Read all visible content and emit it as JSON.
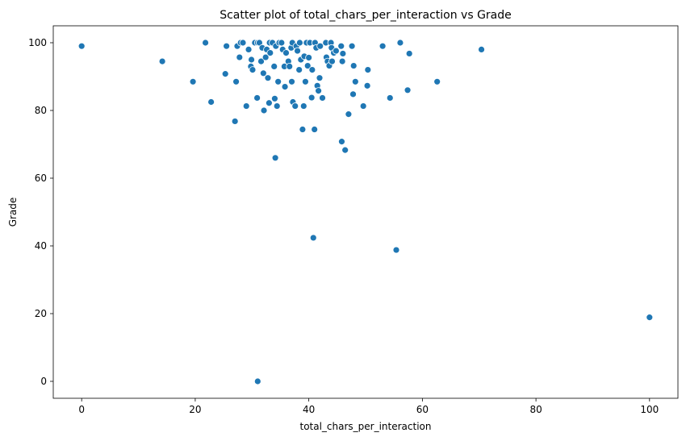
{
  "chart_data": {
    "type": "scatter",
    "title": "Scatter plot of total_chars_per_interaction vs Grade",
    "xlabel": "total_chars_per_interaction",
    "ylabel": "Grade",
    "xlim": [
      -5,
      105
    ],
    "ylim": [
      -5,
      105
    ],
    "xticks": [
      0,
      20,
      40,
      60,
      80,
      100
    ],
    "yticks": [
      0,
      20,
      40,
      60,
      80,
      100
    ],
    "grid": false,
    "legend": "none",
    "color": "#1f77b4",
    "points": [
      [
        0,
        99
      ],
      [
        14.2,
        94.5
      ],
      [
        19.6,
        88.5
      ],
      [
        21.8,
        100
      ],
      [
        22.8,
        82.5
      ],
      [
        25.3,
        90.8
      ],
      [
        25.5,
        99
      ],
      [
        27,
        76.8
      ],
      [
        27.2,
        88.5
      ],
      [
        27.4,
        99
      ],
      [
        27.8,
        95.7
      ],
      [
        28,
        100
      ],
      [
        28.4,
        100
      ],
      [
        29.0,
        81.3
      ],
      [
        29.4,
        98
      ],
      [
        29.8,
        93
      ],
      [
        29.9,
        95
      ],
      [
        30.1,
        92
      ],
      [
        30.5,
        100
      ],
      [
        30.9,
        83.7
      ],
      [
        31.0,
        100
      ],
      [
        31.3,
        100
      ],
      [
        31.6,
        94.5
      ],
      [
        31.8,
        98.5
      ],
      [
        32.0,
        91
      ],
      [
        32.1,
        80
      ],
      [
        32.4,
        95.7
      ],
      [
        32.6,
        98
      ],
      [
        32.8,
        89.6
      ],
      [
        33.1,
        100
      ],
      [
        33.2,
        97
      ],
      [
        33.6,
        100
      ],
      [
        33.0,
        82.2
      ],
      [
        33.9,
        93
      ],
      [
        34.0,
        83.5
      ],
      [
        34.1,
        66
      ],
      [
        34.2,
        99
      ],
      [
        34.4,
        81.3
      ],
      [
        34.6,
        88.5
      ],
      [
        34.8,
        100
      ],
      [
        35.2,
        100
      ],
      [
        35.4,
        98
      ],
      [
        35.7,
        93
      ],
      [
        35.8,
        87
      ],
      [
        36.0,
        97
      ],
      [
        36.4,
        94.5
      ],
      [
        36.6,
        93
      ],
      [
        36.9,
        98.5
      ],
      [
        37.0,
        88.5
      ],
      [
        37.1,
        100
      ],
      [
        37.2,
        82.5
      ],
      [
        37.6,
        81.3
      ],
      [
        37.8,
        99
      ],
      [
        38.0,
        97.6
      ],
      [
        38.3,
        92
      ],
      [
        38.4,
        100
      ],
      [
        38.6,
        95
      ],
      [
        38.9,
        74.4
      ],
      [
        39.1,
        81.3
      ],
      [
        39.2,
        96
      ],
      [
        39.4,
        88.5
      ],
      [
        39.6,
        100
      ],
      [
        39.8,
        93.2
      ],
      [
        40.0,
        95.6
      ],
      [
        40.2,
        100
      ],
      [
        40.5,
        83.8
      ],
      [
        40.6,
        92
      ],
      [
        40.8,
        42.4
      ],
      [
        41.0,
        74.4
      ],
      [
        41.1,
        100
      ],
      [
        41.3,
        98.5
      ],
      [
        41.5,
        87.3
      ],
      [
        41.7,
        85.8
      ],
      [
        41.9,
        89.6
      ],
      [
        42.0,
        99
      ],
      [
        42.4,
        83.7
      ],
      [
        43.0,
        100
      ],
      [
        43.1,
        95.7
      ],
      [
        43.3,
        94.5
      ],
      [
        43.6,
        93.2
      ],
      [
        43.9,
        100
      ],
      [
        44.0,
        98.5
      ],
      [
        44.1,
        94.5
      ],
      [
        44.4,
        97
      ],
      [
        44.8,
        97.6
      ],
      [
        45.7,
        99
      ],
      [
        45.9,
        94.5
      ],
      [
        45.8,
        70.8
      ],
      [
        46.0,
        96.8
      ],
      [
        46.4,
        68.3
      ],
      [
        47.0,
        78.9
      ],
      [
        47.6,
        99
      ],
      [
        47.9,
        93.2
      ],
      [
        47.8,
        84.8
      ],
      [
        48.2,
        88.5
      ],
      [
        49.6,
        81.3
      ],
      [
        50.4,
        92
      ],
      [
        50.3,
        87.3
      ],
      [
        53.0,
        99
      ],
      [
        54.3,
        83.7
      ],
      [
        55.4,
        38.8
      ],
      [
        56.1,
        100
      ],
      [
        57.4,
        86
      ],
      [
        57.7,
        96.8
      ],
      [
        62.6,
        88.5
      ],
      [
        70.4,
        98
      ],
      [
        31.0,
        0
      ],
      [
        100,
        18.9
      ]
    ]
  }
}
